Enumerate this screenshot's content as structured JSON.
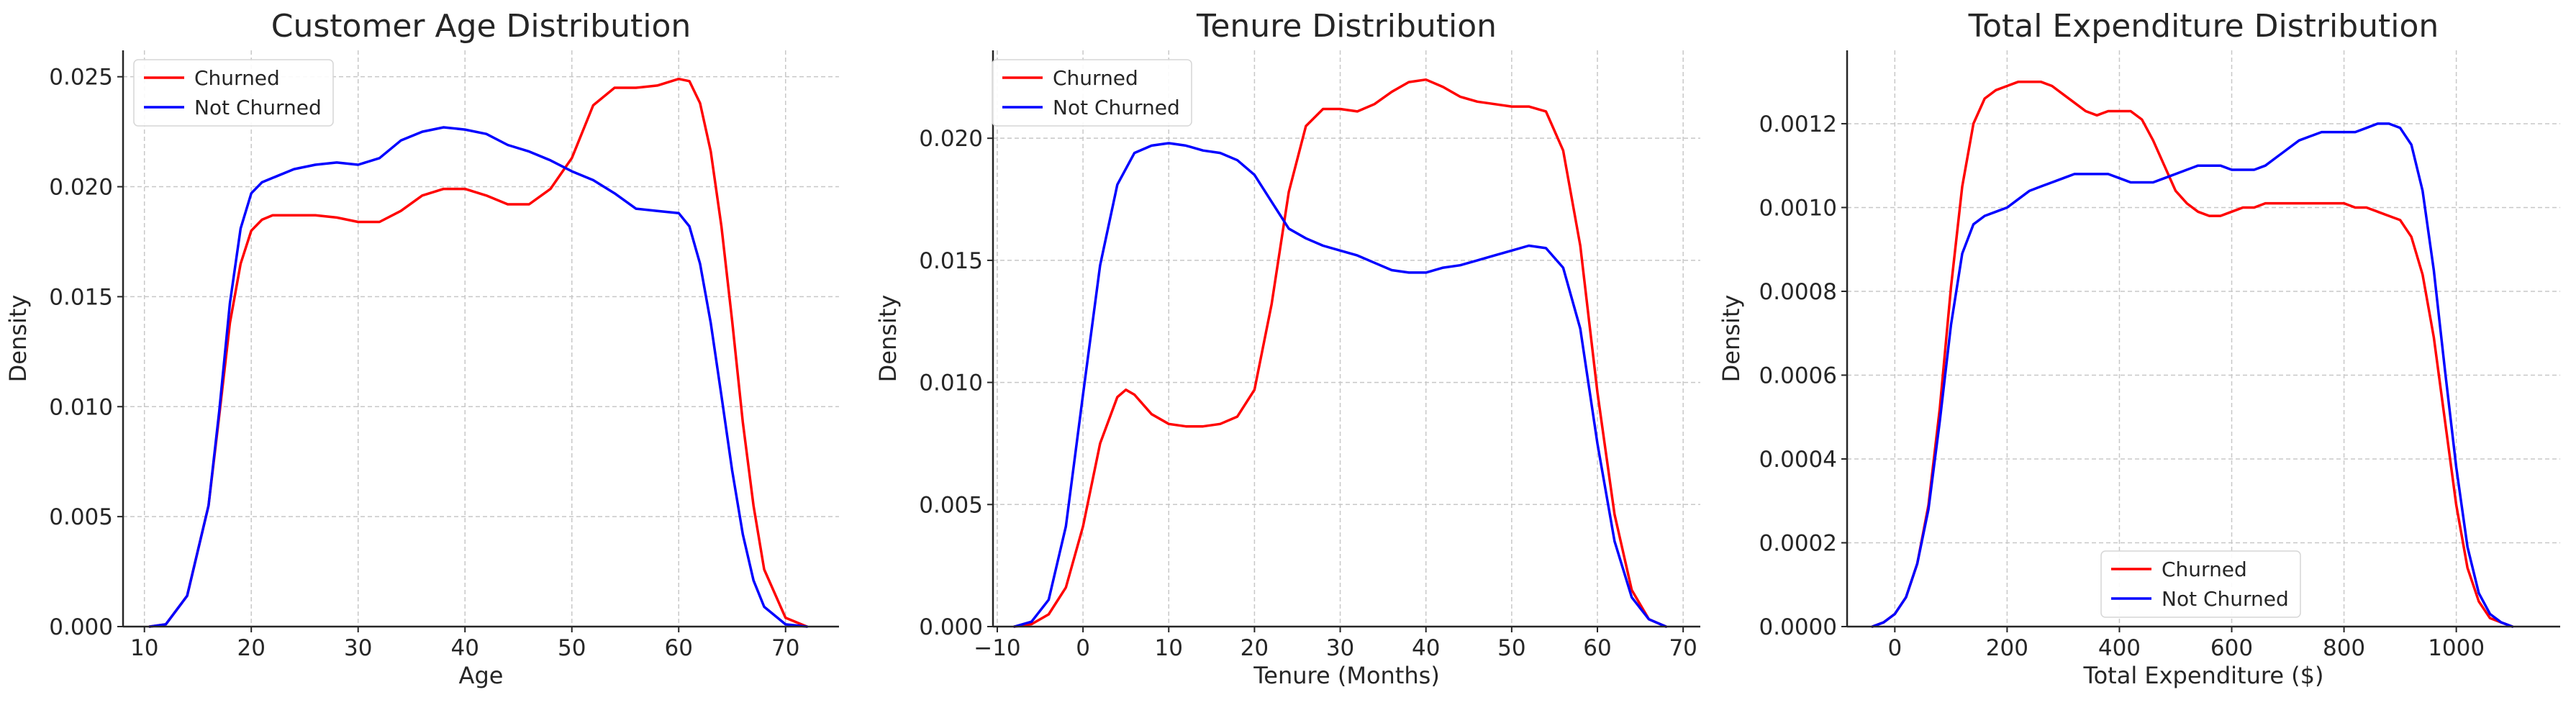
{
  "chart_data": [
    {
      "type": "line",
      "title": "Customer Age Distribution",
      "xlabel": "Age",
      "ylabel": "Density",
      "xlim": [
        8,
        75
      ],
      "ylim": [
        0,
        0.0262
      ],
      "xticks": [
        10,
        20,
        30,
        40,
        50,
        60,
        70
      ],
      "yticks": [
        0,
        0.005,
        0.01,
        0.015,
        0.02,
        0.025
      ],
      "xtick_labels": [
        "10",
        "20",
        "30",
        "40",
        "50",
        "60",
        "70"
      ],
      "ytick_labels": [
        "0.000",
        "0.005",
        "0.010",
        "0.015",
        "0.020",
        "0.025"
      ],
      "grid": true,
      "legend_position": "top-left",
      "series": [
        {
          "name": "Churned",
          "color": "#ff0000",
          "x": [
            10.5,
            12,
            14,
            16,
            17,
            18,
            19,
            20,
            21,
            22,
            24,
            26,
            28,
            30,
            32,
            34,
            36,
            38,
            40,
            42,
            44,
            46,
            48,
            50,
            52,
            54,
            56,
            58,
            60,
            61,
            62,
            63,
            64,
            65,
            66,
            67,
            68,
            70,
            72
          ],
          "y": [
            0.0,
            0.0001,
            0.0014,
            0.0055,
            0.0096,
            0.0138,
            0.0165,
            0.018,
            0.0185,
            0.0187,
            0.0187,
            0.0187,
            0.0186,
            0.0184,
            0.0184,
            0.0189,
            0.0196,
            0.0199,
            0.0199,
            0.0196,
            0.0192,
            0.0192,
            0.0199,
            0.0213,
            0.0237,
            0.0245,
            0.0245,
            0.0246,
            0.0249,
            0.0248,
            0.0238,
            0.0216,
            0.0182,
            0.0139,
            0.0093,
            0.0055,
            0.0026,
            0.0004,
            0.0
          ]
        },
        {
          "name": "Not Churned",
          "color": "#0000ff",
          "x": [
            10.5,
            12,
            14,
            16,
            17,
            18,
            19,
            20,
            21,
            22,
            24,
            26,
            28,
            30,
            32,
            34,
            36,
            38,
            40,
            42,
            44,
            46,
            48,
            50,
            52,
            54,
            56,
            58,
            60,
            61,
            62,
            63,
            64,
            65,
            66,
            67,
            68,
            70,
            72
          ],
          "y": [
            0.0,
            0.0001,
            0.0014,
            0.0055,
            0.0098,
            0.0147,
            0.0181,
            0.0197,
            0.0202,
            0.0204,
            0.0208,
            0.021,
            0.0211,
            0.021,
            0.0213,
            0.0221,
            0.0225,
            0.0227,
            0.0226,
            0.0224,
            0.0219,
            0.0216,
            0.0212,
            0.0207,
            0.0203,
            0.0197,
            0.019,
            0.0189,
            0.0188,
            0.0182,
            0.0165,
            0.0138,
            0.0105,
            0.0071,
            0.0042,
            0.0021,
            0.0009,
            0.0001,
            0.0
          ]
        }
      ]
    },
    {
      "type": "line",
      "title": "Tenure Distribution",
      "xlabel": "Tenure (Months)",
      "ylabel": "Density",
      "xlim": [
        -10.5,
        72
      ],
      "ylim": [
        0,
        0.0236
      ],
      "xticks": [
        -10,
        0,
        10,
        20,
        30,
        40,
        50,
        60,
        70
      ],
      "yticks": [
        0,
        0.005,
        0.01,
        0.015,
        0.02
      ],
      "xtick_labels": [
        "−10",
        "0",
        "10",
        "20",
        "30",
        "40",
        "50",
        "60",
        "70"
      ],
      "ytick_labels": [
        "0.000",
        "0.005",
        "0.010",
        "0.015",
        "0.020"
      ],
      "grid": true,
      "legend_position": "top-left",
      "series": [
        {
          "name": "Churned",
          "color": "#ff0000",
          "x": [
            -8,
            -6,
            -4,
            -2,
            0,
            2,
            4,
            5,
            6,
            8,
            10,
            12,
            14,
            16,
            18,
            20,
            22,
            24,
            26,
            28,
            30,
            32,
            34,
            36,
            38,
            40,
            42,
            44,
            46,
            48,
            50,
            52,
            54,
            56,
            58,
            60,
            62,
            64,
            66,
            68
          ],
          "y": [
            0.0,
            0.0001,
            0.0005,
            0.0016,
            0.0041,
            0.0075,
            0.0094,
            0.0097,
            0.0095,
            0.0087,
            0.0083,
            0.0082,
            0.0082,
            0.0083,
            0.0086,
            0.0097,
            0.0132,
            0.0178,
            0.0205,
            0.0212,
            0.0212,
            0.0211,
            0.0214,
            0.0219,
            0.0223,
            0.0224,
            0.0221,
            0.0217,
            0.0215,
            0.0214,
            0.0213,
            0.0213,
            0.0211,
            0.0195,
            0.0156,
            0.0096,
            0.0046,
            0.0015,
            0.0003,
            0.0
          ]
        },
        {
          "name": "Not Churned",
          "color": "#0000ff",
          "x": [
            -8,
            -6,
            -4,
            -2,
            0,
            2,
            4,
            6,
            8,
            10,
            12,
            14,
            16,
            18,
            20,
            22,
            24,
            26,
            28,
            30,
            32,
            34,
            36,
            38,
            40,
            42,
            44,
            46,
            48,
            50,
            52,
            54,
            56,
            58,
            60,
            62,
            64,
            66,
            68
          ],
          "y": [
            0.0,
            0.0002,
            0.0011,
            0.0041,
            0.0095,
            0.0148,
            0.0181,
            0.0194,
            0.0197,
            0.0198,
            0.0197,
            0.0195,
            0.0194,
            0.0191,
            0.0185,
            0.0174,
            0.0163,
            0.0159,
            0.0156,
            0.0154,
            0.0152,
            0.0149,
            0.0146,
            0.0145,
            0.0145,
            0.0147,
            0.0148,
            0.015,
            0.0152,
            0.0154,
            0.0156,
            0.0155,
            0.0147,
            0.0122,
            0.0075,
            0.0035,
            0.0012,
            0.0003,
            0.0
          ]
        }
      ]
    },
    {
      "type": "line",
      "title": "Total Expenditure Distribution",
      "xlabel": "Total Expenditure ($)",
      "ylabel": "Density",
      "xlim": [
        -85,
        1185
      ],
      "ylim": [
        0,
        0.001375
      ],
      "xticks": [
        0,
        200,
        400,
        600,
        800,
        1000
      ],
      "yticks": [
        0,
        0.0002,
        0.0004,
        0.0006,
        0.0008,
        0.001,
        0.0012
      ],
      "xtick_labels": [
        "0",
        "200",
        "400",
        "600",
        "800",
        "1000"
      ],
      "ytick_labels": [
        "0.0000",
        "0.0002",
        "0.0004",
        "0.0006",
        "0.0008",
        "0.0010",
        "0.0012"
      ],
      "grid": true,
      "legend_position": "bottom-center",
      "series": [
        {
          "name": "Churned",
          "color": "#ff0000",
          "x": [
            -40,
            -20,
            0,
            20,
            40,
            60,
            80,
            100,
            120,
            140,
            160,
            180,
            200,
            220,
            240,
            260,
            280,
            300,
            320,
            340,
            360,
            380,
            400,
            420,
            440,
            460,
            480,
            500,
            520,
            540,
            560,
            580,
            600,
            620,
            640,
            660,
            680,
            700,
            720,
            740,
            760,
            780,
            800,
            820,
            840,
            860,
            880,
            900,
            920,
            940,
            960,
            980,
            1000,
            1020,
            1040,
            1060,
            1080,
            1100
          ],
          "y": [
            0.0,
            1e-05,
            3e-05,
            7e-05,
            0.00015,
            0.00029,
            0.00052,
            0.00081,
            0.00105,
            0.0012,
            0.00126,
            0.00128,
            0.00129,
            0.0013,
            0.0013,
            0.0013,
            0.00129,
            0.00127,
            0.00125,
            0.00123,
            0.00122,
            0.00123,
            0.00123,
            0.00123,
            0.00121,
            0.00116,
            0.0011,
            0.00104,
            0.00101,
            0.00099,
            0.00098,
            0.00098,
            0.00099,
            0.001,
            0.001,
            0.00101,
            0.00101,
            0.00101,
            0.00101,
            0.00101,
            0.00101,
            0.00101,
            0.00101,
            0.001,
            0.001,
            0.00099,
            0.00098,
            0.00097,
            0.00093,
            0.00084,
            0.00069,
            0.00049,
            0.00029,
            0.00014,
            6e-05,
            2e-05,
            1e-05,
            0.0
          ]
        },
        {
          "name": "Not Churned",
          "color": "#0000ff",
          "x": [
            -40,
            -20,
            0,
            20,
            40,
            60,
            80,
            100,
            120,
            140,
            160,
            180,
            200,
            220,
            240,
            260,
            280,
            300,
            320,
            340,
            360,
            380,
            400,
            420,
            440,
            460,
            480,
            500,
            520,
            540,
            560,
            580,
            600,
            620,
            640,
            660,
            680,
            700,
            720,
            740,
            760,
            780,
            800,
            820,
            840,
            860,
            880,
            900,
            920,
            940,
            960,
            980,
            1000,
            1020,
            1040,
            1060,
            1080,
            1100
          ],
          "y": [
            0.0,
            1e-05,
            3e-05,
            7e-05,
            0.00015,
            0.00028,
            0.00049,
            0.00072,
            0.00089,
            0.00096,
            0.00098,
            0.00099,
            0.001,
            0.00102,
            0.00104,
            0.00105,
            0.00106,
            0.00107,
            0.00108,
            0.00108,
            0.00108,
            0.00108,
            0.00107,
            0.00106,
            0.00106,
            0.00106,
            0.00107,
            0.00108,
            0.00109,
            0.0011,
            0.0011,
            0.0011,
            0.00109,
            0.00109,
            0.00109,
            0.0011,
            0.00112,
            0.00114,
            0.00116,
            0.00117,
            0.00118,
            0.00118,
            0.00118,
            0.00118,
            0.00119,
            0.0012,
            0.0012,
            0.00119,
            0.00115,
            0.00104,
            0.00085,
            0.00061,
            0.00038,
            0.00019,
            8e-05,
            3e-05,
            1e-05,
            0.0
          ]
        }
      ]
    }
  ]
}
